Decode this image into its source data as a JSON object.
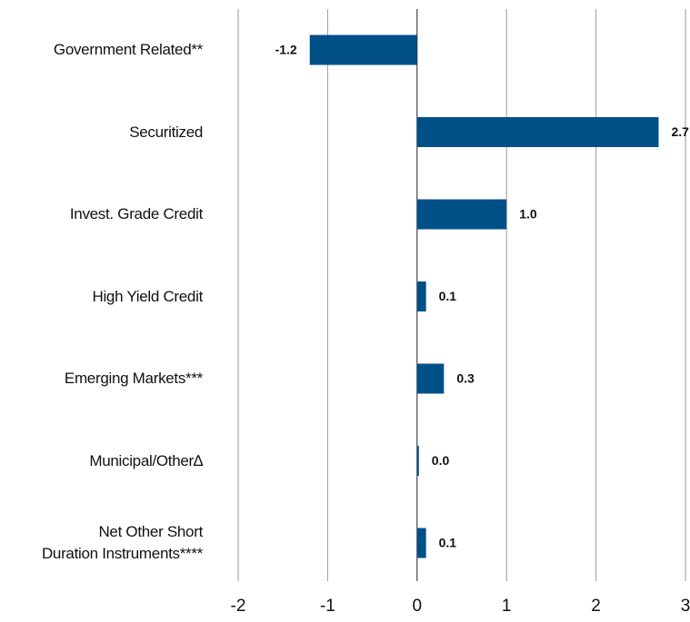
{
  "chart_data": {
    "type": "hbar",
    "categories": [
      "Government Related**",
      "Securitized",
      "Invest. Grade Credit",
      "High Yield Credit",
      "Emerging Markets***",
      "Municipal/Other∆",
      "Net Other Short\nDuration Instruments****"
    ],
    "values": [
      -1.2,
      2.7,
      1.0,
      0.1,
      0.3,
      0.0,
      0.1
    ],
    "value_labels": [
      "-1.2",
      "2.7",
      "1.0",
      "0.1",
      "0.3",
      "0.0",
      "0.1"
    ],
    "color": "#005088",
    "xlim": [
      -2,
      3
    ],
    "xticks": [
      -2,
      -1,
      0,
      1,
      2,
      3
    ],
    "grid": true
  }
}
